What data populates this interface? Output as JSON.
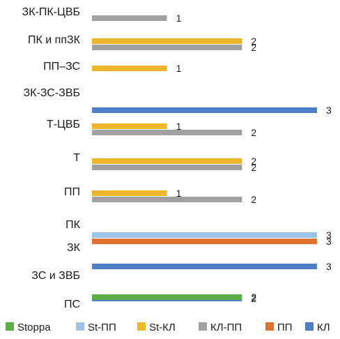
{
  "chart_data": {
    "type": "bar",
    "orientation": "horizontal",
    "title": "",
    "xlabel": "",
    "ylabel": "",
    "xlim": [
      0,
      3
    ],
    "grid": false,
    "legend_position": "bottom",
    "categories": [
      "ЗК-ПК-ЦВБ",
      "ПК и ппЗК",
      "ПП–ЗС",
      "ЗК-ЗС-ЗВБ",
      "Т-ЦВБ",
      "Т",
      "ПП",
      "ПК",
      "ЗК",
      "ЗС и ЗВБ",
      "ПС"
    ],
    "series": [
      {
        "name": "Stoppa",
        "color": "#5bad47",
        "values": [
          null,
          null,
          null,
          null,
          null,
          null,
          null,
          null,
          null,
          null,
          2
        ]
      },
      {
        "name": "St-ПП",
        "color": "#9dc3e6",
        "values": [
          null,
          null,
          null,
          null,
          null,
          null,
          null,
          3,
          null,
          null,
          null
        ]
      },
      {
        "name": "St-КЛ",
        "color": "#ecb52b",
        "values": [
          null,
          2,
          1,
          null,
          1,
          2,
          1,
          null,
          null,
          null,
          null
        ]
      },
      {
        "name": "КЛ-ПП",
        "color": "#a0a0a0",
        "values": [
          1,
          2,
          null,
          null,
          2,
          2,
          2,
          null,
          null,
          null,
          null
        ]
      },
      {
        "name": "ПП",
        "color": "#e07231",
        "values": [
          null,
          null,
          null,
          null,
          null,
          null,
          null,
          3,
          null,
          null,
          null
        ]
      },
      {
        "name": "КЛ",
        "color": "#4f7fc6",
        "values": [
          null,
          null,
          null,
          3,
          null,
          null,
          null,
          null,
          3,
          2,
          null
        ]
      }
    ]
  }
}
